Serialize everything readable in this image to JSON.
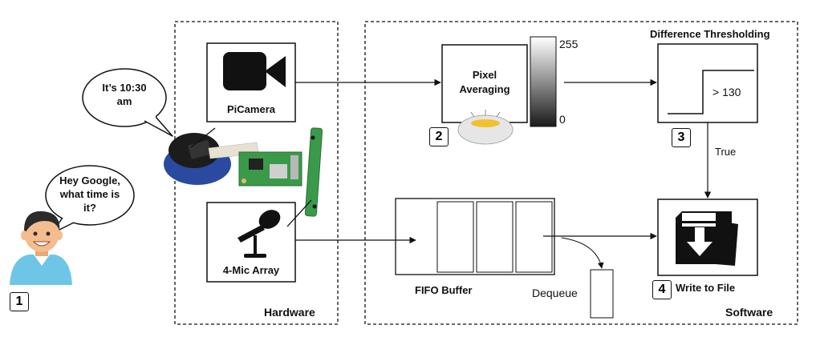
{
  "hardware": {
    "title": "Hardware",
    "picamera_label": "PiCamera",
    "mic_label": "4-Mic Array"
  },
  "software": {
    "title": "Software",
    "pixel_label_1": "Pixel",
    "pixel_label_2": "Averaging",
    "scale_max": "255",
    "scale_min": "0",
    "threshold_title": "Difference Thresholding",
    "threshold_value": "> 130",
    "true_label": "True",
    "fifo_label": "FIFO Buffer",
    "dequeue_label": "Dequeue",
    "write_label": "Write to File"
  },
  "speech": {
    "assistant_line1": "It’s 10:30",
    "assistant_line2": "am",
    "user_line1": "Hey Google,",
    "user_line2": "what time is",
    "user_line3": "it?"
  },
  "steps": {
    "s1": "1",
    "s2": "2",
    "s3": "3",
    "s4": "4"
  },
  "colors": {
    "line": "#111111",
    "skin": "#f3bd8f",
    "shirt": "#6ec6e6",
    "hair": "#2b2b2b",
    "pcb_green": "#3a9a4a",
    "camera_blue": "#2a4aa0",
    "accent_yellow": "#f2c12e"
  }
}
